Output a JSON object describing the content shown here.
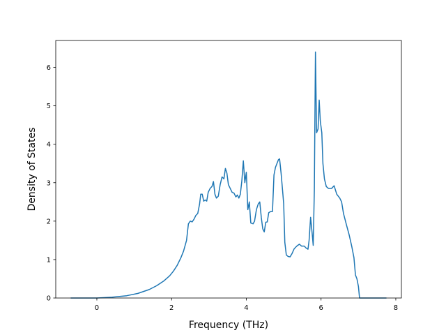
{
  "chart_data": {
    "type": "line",
    "title": "",
    "xlabel": "Frequency (THz)",
    "ylabel": "Density of States",
    "xlim": [
      -1.1,
      8.15
    ],
    "ylim": [
      0,
      6.7
    ],
    "x_ticks": [
      0,
      2,
      4,
      6,
      8
    ],
    "y_ticks": [
      0,
      1,
      2,
      3,
      4,
      5,
      6
    ],
    "grid": false,
    "legend": "none",
    "series": [
      {
        "color": "#1f77b4",
        "points": [
          [
            -0.7,
            0.0
          ],
          [
            0.0,
            0.0
          ],
          [
            0.4,
            0.02
          ],
          [
            0.8,
            0.06
          ],
          [
            1.1,
            0.12
          ],
          [
            1.4,
            0.22
          ],
          [
            1.6,
            0.32
          ],
          [
            1.8,
            0.45
          ],
          [
            1.95,
            0.58
          ],
          [
            2.05,
            0.7
          ],
          [
            2.15,
            0.85
          ],
          [
            2.25,
            1.05
          ],
          [
            2.32,
            1.22
          ],
          [
            2.4,
            1.5
          ],
          [
            2.45,
            1.93
          ],
          [
            2.5,
            2.0
          ],
          [
            2.55,
            1.98
          ],
          [
            2.6,
            2.05
          ],
          [
            2.65,
            2.15
          ],
          [
            2.7,
            2.2
          ],
          [
            2.75,
            2.45
          ],
          [
            2.78,
            2.7
          ],
          [
            2.82,
            2.7
          ],
          [
            2.86,
            2.52
          ],
          [
            2.9,
            2.55
          ],
          [
            2.94,
            2.52
          ],
          [
            2.98,
            2.75
          ],
          [
            3.03,
            2.85
          ],
          [
            3.08,
            2.9
          ],
          [
            3.12,
            3.03
          ],
          [
            3.16,
            2.7
          ],
          [
            3.2,
            2.6
          ],
          [
            3.25,
            2.65
          ],
          [
            3.3,
            2.95
          ],
          [
            3.35,
            3.15
          ],
          [
            3.4,
            3.1
          ],
          [
            3.44,
            3.37
          ],
          [
            3.48,
            3.25
          ],
          [
            3.52,
            2.95
          ],
          [
            3.57,
            2.85
          ],
          [
            3.62,
            2.75
          ],
          [
            3.67,
            2.73
          ],
          [
            3.72,
            2.63
          ],
          [
            3.76,
            2.68
          ],
          [
            3.8,
            2.6
          ],
          [
            3.84,
            2.7
          ],
          [
            3.88,
            3.05
          ],
          [
            3.92,
            3.57
          ],
          [
            3.96,
            3.0
          ],
          [
            4.0,
            3.27
          ],
          [
            4.04,
            2.3
          ],
          [
            4.08,
            2.5
          ],
          [
            4.12,
            1.95
          ],
          [
            4.18,
            1.93
          ],
          [
            4.22,
            2.0
          ],
          [
            4.27,
            2.3
          ],
          [
            4.32,
            2.45
          ],
          [
            4.36,
            2.5
          ],
          [
            4.4,
            2.1
          ],
          [
            4.44,
            1.8
          ],
          [
            4.48,
            1.72
          ],
          [
            4.52,
            1.97
          ],
          [
            4.56,
            1.98
          ],
          [
            4.6,
            2.22
          ],
          [
            4.65,
            2.25
          ],
          [
            4.7,
            2.25
          ],
          [
            4.74,
            3.2
          ],
          [
            4.78,
            3.4
          ],
          [
            4.82,
            3.5
          ],
          [
            4.86,
            3.6
          ],
          [
            4.89,
            3.62
          ],
          [
            4.93,
            3.25
          ],
          [
            4.97,
            2.8
          ],
          [
            5.0,
            2.45
          ],
          [
            5.03,
            1.45
          ],
          [
            5.07,
            1.12
          ],
          [
            5.12,
            1.08
          ],
          [
            5.17,
            1.07
          ],
          [
            5.22,
            1.15
          ],
          [
            5.28,
            1.28
          ],
          [
            5.35,
            1.35
          ],
          [
            5.42,
            1.4
          ],
          [
            5.48,
            1.35
          ],
          [
            5.55,
            1.35
          ],
          [
            5.6,
            1.3
          ],
          [
            5.65,
            1.27
          ],
          [
            5.68,
            1.5
          ],
          [
            5.72,
            2.1
          ],
          [
            5.76,
            1.7
          ],
          [
            5.79,
            1.37
          ],
          [
            5.82,
            2.8
          ],
          [
            5.85,
            6.4
          ],
          [
            5.88,
            4.3
          ],
          [
            5.92,
            4.4
          ],
          [
            5.95,
            5.15
          ],
          [
            5.98,
            4.6
          ],
          [
            6.02,
            4.3
          ],
          [
            6.05,
            3.5
          ],
          [
            6.09,
            3.1
          ],
          [
            6.14,
            2.9
          ],
          [
            6.2,
            2.85
          ],
          [
            6.28,
            2.85
          ],
          [
            6.35,
            2.92
          ],
          [
            6.42,
            2.7
          ],
          [
            6.5,
            2.6
          ],
          [
            6.55,
            2.5
          ],
          [
            6.6,
            2.2
          ],
          [
            6.68,
            1.9
          ],
          [
            6.75,
            1.65
          ],
          [
            6.82,
            1.35
          ],
          [
            6.88,
            1.05
          ],
          [
            6.92,
            0.6
          ],
          [
            6.96,
            0.5
          ],
          [
            7.0,
            0.3
          ],
          [
            7.03,
            0.0
          ],
          [
            7.75,
            0.0
          ]
        ]
      }
    ]
  }
}
